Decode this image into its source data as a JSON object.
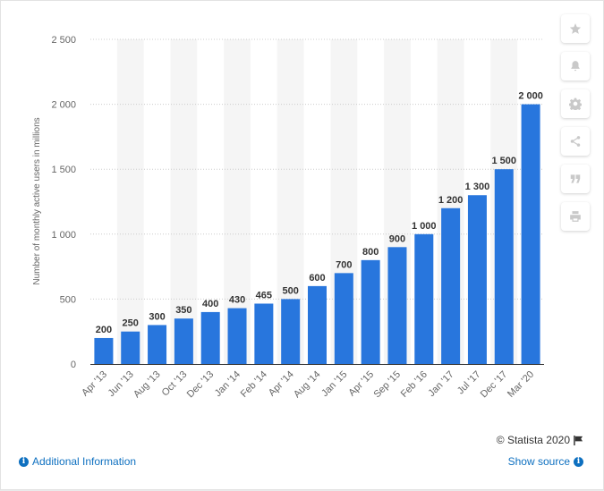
{
  "chart_data": {
    "type": "bar",
    "ylabel": "Number of monthly active users in millions",
    "ylim": [
      0,
      2500
    ],
    "yticks": [
      0,
      500,
      1000,
      1500,
      2000,
      2500
    ],
    "ytick_labels": [
      "0",
      "500",
      "1 000",
      "1 500",
      "2 000",
      "2 500"
    ],
    "categories": [
      "Apr '13",
      "Jun '13",
      "Aug '13",
      "Oct '13",
      "Dec '13",
      "Jan '14",
      "Feb '14",
      "Apr '14",
      "Aug '14",
      "Jan '15",
      "Apr '15",
      "Sep '15",
      "Feb '16",
      "Jan '17",
      "Jul '17",
      "Dec '17",
      "Mar '20"
    ],
    "values": [
      200,
      250,
      300,
      350,
      400,
      430,
      465,
      500,
      600,
      700,
      800,
      900,
      1000,
      1200,
      1300,
      1500,
      2000
    ],
    "data_labels": [
      "200",
      "250",
      "300",
      "350",
      "400",
      "430",
      "465",
      "500",
      "600",
      "700",
      "800",
      "900",
      "1 000",
      "1 200",
      "1 300",
      "1 500",
      "2 000"
    ],
    "bar_color": "#2876dd",
    "band_color": "#f5f5f5",
    "grid": true
  },
  "toolbar": {
    "icons": [
      "star-icon",
      "bell-icon",
      "gear-icon",
      "share-icon",
      "quote-icon",
      "print-icon"
    ]
  },
  "footer": {
    "copyright": "© Statista 2020",
    "additional_info": "Additional Information",
    "show_source": "Show source"
  }
}
